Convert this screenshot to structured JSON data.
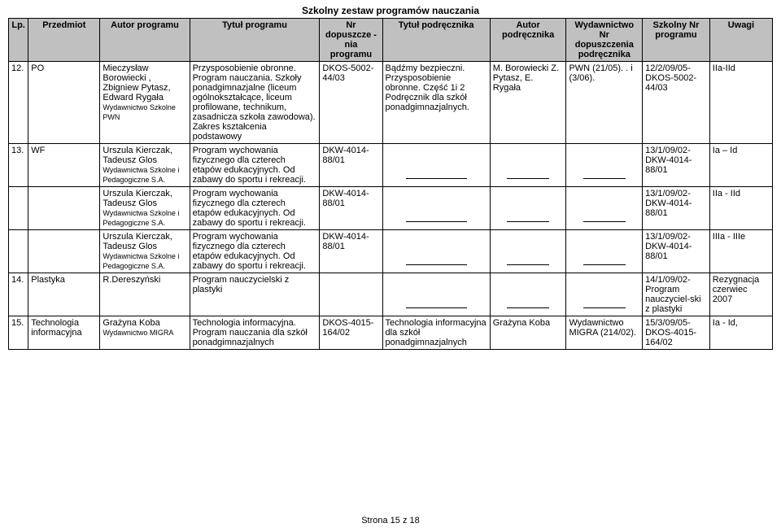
{
  "title": "Szkolny  zestaw programów nauczania",
  "headers": {
    "c1": "Lp.",
    "c2": "Przedmiot",
    "c3": "Autor programu",
    "c4": "Tytuł programu",
    "c5": "Nr dopuszcze\n-nia programu",
    "c6": "Tytuł podręcznika",
    "c7": "Autor podręcznika",
    "c8": "Wydawnictwo Nr dopuszczenia podręcznika",
    "c9": "Szkolny Nr programu",
    "c10": "Uwagi"
  },
  "rows": [
    {
      "lp": "12.",
      "przedmiot": "PO",
      "autor": "Mieczysław Borowiecki , Zbigniew Pytasz, Edward Rygała",
      "autor_small": "Wydawnictwo Szkolne PWN",
      "tytul": "Przysposobienie obronne. Program nauczania. Szkoły ponadgimnazjalne (liceum ogólnokształcące, liceum profilowane, technikum, zasadnicza szkoła zawodowa). Zakres kształcenia podstawowy",
      "nr": "DKOS-5002-44/03",
      "podrecznik": "Bądźmy bezpieczni. Przysposobienie obronne. Część 1i 2 Podręcznik dla szkół ponadgimnazjalnych.",
      "autor_p": "M. Borowiecki Z. Pytasz, E. Rygała",
      "wyd": "PWN (21/05). . i (3/06).",
      "szkolny": "12/2/09/05-DKOS-5002-44/03",
      "uwagi": "IIa-IId"
    },
    {
      "lp": "13.",
      "przedmiot": "WF",
      "autor": "Urszula Kierczak, Tadeusz Glos",
      "autor_small": "Wydawnictwa Szkolne i Pedagogiczne S.A.",
      "tytul": "Program wychowania fizycznego dla czterech etapów edukacyjnych. Od zabawy do sportu i rekreacji.",
      "nr": "DKW-4014-88/01",
      "podrecznik": "",
      "autor_p": "",
      "wyd": "",
      "szkolny": "13/1/09/02-DKW-4014-88/01",
      "uwagi": "Ia – Id",
      "blank": true
    },
    {
      "lp": "",
      "przedmiot": "",
      "autor": "Urszula Kierczak, Tadeusz Glos",
      "autor_small": "Wydawnictwa Szkolne i Pedagogiczne S.A.",
      "tytul": "Program wychowania fizycznego dla czterech etapów edukacyjnych. Od zabawy do sportu i rekreacji.",
      "nr": "DKW-4014-88/01",
      "podrecznik": "",
      "autor_p": "",
      "wyd": "",
      "szkolny": "13/1/09/02-DKW-4014-88/01",
      "uwagi": "IIa - IId",
      "blank": true
    },
    {
      "lp": "",
      "przedmiot": "",
      "autor": "Urszula Kierczak, Tadeusz Glos",
      "autor_small": "Wydawnictwa Szkolne i Pedagogiczne S.A.",
      "tytul": "Program wychowania fizycznego dla czterech etapów edukacyjnych. Od zabawy do sportu i rekreacji.",
      "nr": "DKW-4014-88/01",
      "podrecznik": "",
      "autor_p": "",
      "wyd": "",
      "szkolny": "13/1/09/02-DKW-4014-88/01",
      "uwagi": "IIIa - IIIe",
      "blank": true
    },
    {
      "lp": "14.",
      "przedmiot": "Plastyka",
      "autor": "R.Dereszyński",
      "autor_small": "",
      "tytul": "Program nauczycielski z plastyki",
      "nr": "",
      "podrecznik": "",
      "autor_p": "",
      "wyd": "",
      "szkolny": "14/1/09/02-Program nauczyciel-ski z plastyki",
      "uwagi": "Rezygnacja czerwiec 2007",
      "blank": true
    },
    {
      "lp": "15.",
      "przedmiot": "Technologia informacyjna",
      "autor": "Grażyna Koba",
      "autor_small": "Wydawnictwo MIGRA",
      "tytul": "Technologia informacyjna. Program nauczania dla szkół ponadgimnazjalnych",
      "nr": "DKOS-4015-164/02",
      "podrecznik": "Technologia informacyjna dla szkół ponadgimnazjalnych",
      "autor_p": "Grażyna Koba",
      "wyd": "Wydawnictwo MIGRA (214/02).",
      "szkolny": "15/3/09/05-DKOS-4015-164/02",
      "uwagi": "Ia - Id,"
    }
  ],
  "footer": "Strona  15 z 18"
}
